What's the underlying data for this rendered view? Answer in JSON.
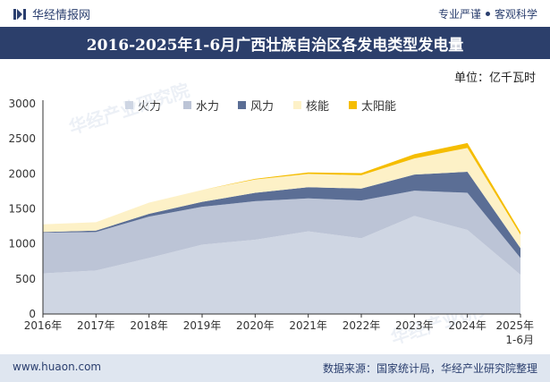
{
  "header": {
    "brand": "华经情报网",
    "slogan_left": "专业严谨",
    "slogan_right": "客观科学",
    "title": "2016-2025年1-6月广西壮族自治区各发电类型发电量"
  },
  "footer": {
    "website": "www.huaon.com",
    "source": "数据来源：国家统计局，华经产业研究院整理"
  },
  "watermark": "华经产业研究院",
  "chart_data": {
    "type": "area",
    "stacked": true,
    "unit_label": "单位：亿千瓦时",
    "categories": [
      "2016年",
      "2017年",
      "2018年",
      "2019年",
      "2020年",
      "2021年",
      "2022年",
      "2023年",
      "2024年",
      "2025年\n1-6月"
    ],
    "ylim": [
      0,
      3000
    ],
    "yticks": [
      0,
      500,
      1000,
      1500,
      2000,
      2500,
      3000
    ],
    "legend_position": "top",
    "series": [
      {
        "name": "火力",
        "color": "#cfd6e3",
        "values": [
          580,
          620,
          800,
          990,
          1060,
          1180,
          1080,
          1400,
          1200,
          560
        ]
      },
      {
        "name": "水力",
        "color": "#bcc4d6",
        "values": [
          580,
          550,
          590,
          540,
          550,
          470,
          540,
          360,
          530,
          240
        ]
      },
      {
        "name": "风力",
        "color": "#5b6e95",
        "values": [
          10,
          20,
          40,
          70,
          120,
          160,
          170,
          230,
          300,
          140
        ]
      },
      {
        "name": "核能",
        "color": "#fdf1c7",
        "values": [
          110,
          120,
          160,
          170,
          190,
          190,
          190,
          230,
          340,
          190
        ]
      },
      {
        "name": "太阳能",
        "color": "#f5bd00",
        "values": [
          0,
          0,
          0,
          0,
          10,
          20,
          30,
          60,
          70,
          40
        ]
      }
    ]
  }
}
